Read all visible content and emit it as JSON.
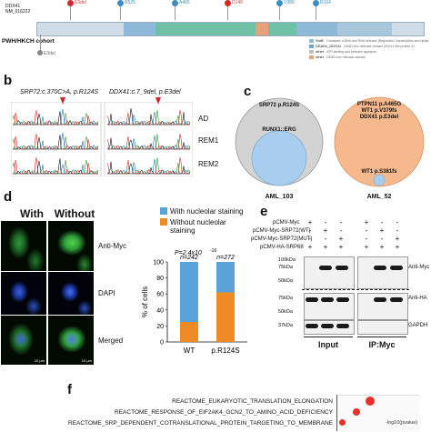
{
  "panel_a": {
    "gene": "DDX41",
    "transcript": "NM_016222",
    "cohort": "PWH/HKCH cohort",
    "legend_items": [
      {
        "name": "SmB",
        "desc": "Translates a DNA and RNA helicase (Regulation, transcription and repair)",
        "color": "#8fb9d8"
      },
      {
        "name": "DEADc_DDX41",
        "desc": "DEAD-box helicase domain DDX41 like protein 41",
        "color": "#6aa8c8"
      },
      {
        "name": "other",
        "desc": "ATP-binding and helicase signature",
        "color": "#c0c0c0"
      },
      {
        "name": "other",
        "desc": "DEAD-box helicase domain",
        "color": "#e8a07a"
      }
    ],
    "marker_colors": [
      "#d62728",
      "#3b8ec2",
      "#3b8ec2",
      "#d62728",
      "#3b8ec2",
      "#3b8ec2"
    ],
    "lollipop_labels": [
      "E3del",
      "R525",
      "A465",
      "D140",
      "V380",
      "R164"
    ],
    "bottom_label": "E3del"
  },
  "panel_b": {
    "label": "b",
    "seq1_label": "SRP72:c.370C>A, p.R124S",
    "seq2_label": "DDX41:c.7_9del, p.E3del",
    "rows": [
      "AD",
      "REM1",
      "REM2"
    ]
  },
  "panel_c": {
    "label": "c",
    "venn1": {
      "outer_label": "SRP72 p.R124S",
      "inner_label": "RUNX1::ERG",
      "caption": "AML_103"
    },
    "venn2": {
      "outer_lines": [
        "PTPN11 p.A465G",
        "WT1 p.V379fs",
        "DDX41 p.E3del"
      ],
      "inner_label": "WT1 p.S381fs",
      "caption": "AML_52"
    }
  },
  "panel_d": {
    "label": "d",
    "col_with": "With",
    "col_without": "Without",
    "row_labels": [
      "Anti-Myc",
      "DAPI",
      "Merged"
    ],
    "scale_bar": "10 µm",
    "chart_data": {
      "type": "bar",
      "stacked": true,
      "categories": [
        "WT",
        "p.R124S"
      ],
      "series": [
        {
          "name": "Without nucleolar staining",
          "values": [
            25,
            62
          ],
          "color": "#f08a24"
        },
        {
          "name": "With nucleolar staining",
          "values": [
            75,
            38
          ],
          "color": "#5aa3d8"
        }
      ],
      "n_labels": [
        "n=242",
        "n=272"
      ],
      "pvalue": "P=2.4x10",
      "pvalue_exp": "-16",
      "ylabel": "% of cells",
      "ylim": [
        0,
        100
      ],
      "yticks": [
        "0",
        "20",
        "40",
        "60",
        "80",
        "100"
      ],
      "legend_position": "top"
    }
  },
  "panel_e": {
    "label": "e",
    "row_labels": [
      "pCMV-Myc",
      "pCMV-Myc-SRP72(WT)",
      "pCMV-Myc-SRP72(MUT)",
      "pCMV-HA-SRP68"
    ],
    "signs": [
      [
        "+",
        "-",
        "-",
        "+",
        "-",
        "-"
      ],
      [
        "-",
        "+",
        "-",
        "-",
        "+",
        "-"
      ],
      [
        "-",
        "-",
        "+",
        "-",
        "-",
        "+"
      ],
      [
        "+",
        "+",
        "+",
        "+",
        "+",
        "+"
      ]
    ],
    "markers_myc": [
      "100kDa",
      "75kDa",
      "50kDa"
    ],
    "markers_ha": [
      "75kDa",
      "50kDa"
    ],
    "markers_gapdh": [
      "37kDa"
    ],
    "blot_labels": [
      "Anti-Myc",
      "Anti-HA",
      "GAPDH"
    ],
    "group_input": "Input",
    "group_ip": "IP:Myc"
  },
  "panel_f": {
    "label": "f",
    "terms": [
      "REACTOME_EUKARYOTIC_TRANSLATION_ELONGATION",
      "REACTOME_RESPONSE_OF_EIF2AK4_GCN2_TO_AMINO_ACID_DEFICIENCY",
      "REACTOME_SRP_DEPENDENT_COTRANSLATIONAL_PROTEIN_TARGETING_TO_MEMBRANE"
    ],
    "xlabel": "-log10(pvalue)"
  }
}
